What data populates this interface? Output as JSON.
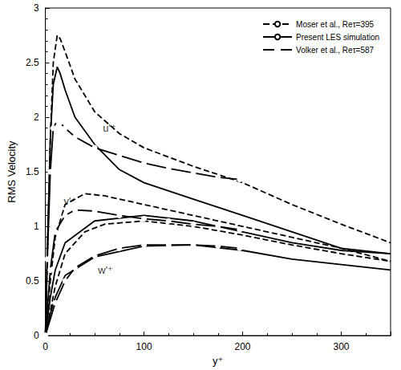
{
  "chart_data": {
    "type": "line",
    "x_label": "y⁺",
    "y_label": "RMS Velocity",
    "xlim": [
      0,
      350
    ],
    "xticks": [
      0,
      100,
      200,
      300
    ],
    "ylim": [
      0,
      3
    ],
    "yticks": [
      0,
      0.5,
      1,
      1.5,
      2,
      2.5,
      3
    ],
    "grid": false,
    "legend": "top-right",
    "series": [
      {
        "name": "Moser et al., Reτ=395",
        "color": "#000000",
        "line_style": "dashed",
        "marker": "none",
        "x": [
          0,
          2,
          5,
          8,
          12,
          15,
          20,
          30,
          50,
          75,
          100,
          150,
          200,
          250,
          300,
          350
        ],
        "values": [
          0,
          0.7,
          1.8,
          2.5,
          2.75,
          2.72,
          2.6,
          2.35,
          2.05,
          1.85,
          1.72,
          1.55,
          1.4,
          1.2,
          1.02,
          0.85
        ]
      },
      {
        "name": "Moser et al., Reτ=395",
        "color": "#000000",
        "line_style": "dashed",
        "marker": "none",
        "x": [
          0,
          5,
          10,
          20,
          40,
          60,
          100,
          150,
          200,
          250,
          300,
          350
        ],
        "values": [
          0,
          0.5,
          0.9,
          1.2,
          1.3,
          1.28,
          1.2,
          1.1,
          1.0,
          0.9,
          0.8,
          0.68
        ]
      },
      {
        "name": "Moser et al., Reτ=395",
        "color": "#000000",
        "line_style": "dashed",
        "marker": "none",
        "x": [
          0,
          10,
          20,
          40,
          60,
          100,
          150,
          200,
          250,
          300,
          350
        ],
        "values": [
          0,
          0.45,
          0.75,
          0.95,
          1.02,
          1.05,
          1.0,
          0.92,
          0.83,
          0.75,
          0.68
        ]
      },
      {
        "name": "Present LES simulation",
        "color": "#000000",
        "line_style": "solid",
        "marker": "none",
        "x": [
          0,
          2,
          5,
          8,
          12,
          15,
          20,
          30,
          50,
          75,
          100,
          150,
          200,
          250,
          300,
          350
        ],
        "values": [
          0,
          0.8,
          1.8,
          2.3,
          2.46,
          2.4,
          2.25,
          2.0,
          1.75,
          1.52,
          1.4,
          1.25,
          1.1,
          0.95,
          0.8,
          0.75
        ]
      },
      {
        "name": "Present LES simulation",
        "color": "#000000",
        "line_style": "solid",
        "marker": "none",
        "x": [
          0,
          5,
          10,
          20,
          50,
          100,
          150,
          200,
          250,
          300,
          350
        ],
        "values": [
          0,
          0.35,
          0.6,
          0.85,
          1.05,
          1.1,
          1.05,
          0.95,
          0.85,
          0.78,
          0.75
        ]
      },
      {
        "name": "Present LES simulation",
        "color": "#000000",
        "line_style": "solid",
        "marker": "none",
        "x": [
          0,
          5,
          10,
          20,
          50,
          100,
          150,
          200,
          250,
          300,
          350
        ],
        "values": [
          0,
          0.2,
          0.35,
          0.55,
          0.72,
          0.82,
          0.83,
          0.78,
          0.7,
          0.65,
          0.6
        ]
      },
      {
        "name": "Volker et al., Reτ=587",
        "color": "#000000",
        "line_style": "solid",
        "marker": "circle",
        "x": [
          0,
          2,
          5,
          8,
          12,
          15,
          20,
          30,
          50,
          75,
          100,
          125,
          150,
          175,
          197
        ],
        "values": [
          0,
          0.7,
          1.5,
          1.9,
          1.97,
          1.95,
          1.9,
          1.82,
          1.72,
          1.65,
          1.58,
          1.53,
          1.49,
          1.45,
          1.43
        ]
      },
      {
        "name": "Volker et al., Reτ=587",
        "color": "#000000",
        "line_style": "solid",
        "marker": "circle",
        "x": [
          0,
          5,
          10,
          20,
          30,
          50,
          75,
          100,
          125,
          150,
          175,
          197
        ],
        "values": [
          0,
          0.6,
          0.95,
          1.1,
          1.15,
          1.14,
          1.1,
          1.07,
          1.05,
          1.02,
          1.0,
          0.97
        ]
      },
      {
        "name": "Volker et al., Reτ=587",
        "color": "#000000",
        "line_style": "solid",
        "marker": "circle",
        "x": [
          0,
          10,
          20,
          30,
          50,
          75,
          100,
          125,
          150,
          175,
          197
        ],
        "values": [
          0,
          0.3,
          0.5,
          0.62,
          0.73,
          0.8,
          0.83,
          0.83,
          0.83,
          0.82,
          0.8
        ]
      }
    ],
    "annotations": [
      {
        "text": "u'⁺",
        "x": 65,
        "y": 1.9
      },
      {
        "text": "v'⁺",
        "x": 25,
        "y": 1.23
      },
      {
        "text": "w'⁺",
        "x": 61,
        "y": 0.6
      }
    ]
  }
}
